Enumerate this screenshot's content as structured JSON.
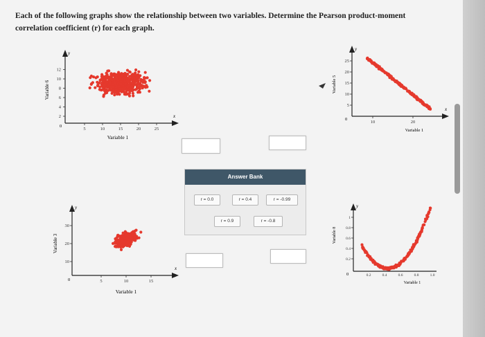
{
  "question": "Each of the following graphs show the relationship between two variables. Determine the Pearson product-moment correlation coefficient (r) for each graph.",
  "graphs": [
    {
      "id": "tl",
      "xlabel": "Variable 1",
      "ylabel": "Variable 6",
      "xticks": [
        "5",
        "10",
        "15",
        "20",
        "25"
      ],
      "yticks": [
        "2",
        "4",
        "6",
        "8",
        "10",
        "12"
      ],
      "origin": "0",
      "xaxis": "x",
      "yaxis": "y"
    },
    {
      "id": "tr",
      "xlabel": "Variable 1",
      "ylabel": "Variable 5",
      "xticks": [
        "10",
        "20"
      ],
      "yticks": [
        "5",
        "10",
        "15",
        "20",
        "25"
      ],
      "origin": "0",
      "xaxis": "x",
      "yaxis": "y"
    },
    {
      "id": "bl",
      "xlabel": "Variable 1",
      "ylabel": "Variable 3",
      "xticks": [
        "5",
        "10",
        "15"
      ],
      "yticks": [
        "10",
        "20",
        "30"
      ],
      "origin": "0",
      "xaxis": "x",
      "yaxis": "y"
    },
    {
      "id": "br",
      "xlabel": "Variable 1",
      "ylabel": "Variable 8",
      "xticks": [
        "0.2",
        "0.4",
        "0.6",
        "0.8",
        "1.0"
      ],
      "yticks": [
        "0.2",
        "0.4",
        "0.6",
        "0.8",
        "1"
      ],
      "origin": "0",
      "xaxis": "x",
      "yaxis": "y"
    }
  ],
  "answer_bank": {
    "title": "Answer Bank",
    "options": [
      "r = 0.0",
      "r = 0.4",
      "r = -0.99",
      "r = 0.9",
      "r = -0.8"
    ]
  },
  "colors": {
    "dots": "#e5392d",
    "bank_header": "#3f5768"
  }
}
